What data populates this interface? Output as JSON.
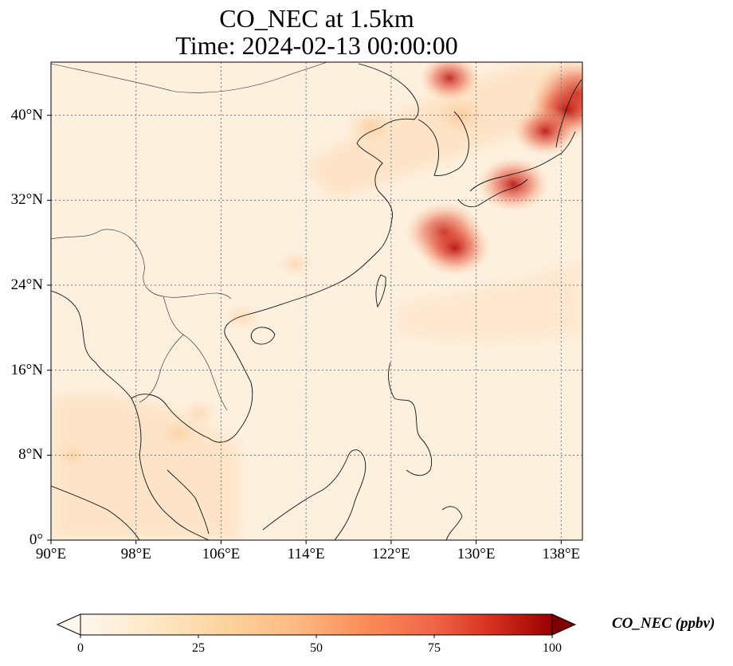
{
  "title": {
    "line1": "CO_NEC at 1.5km",
    "line2": "Time: 2024-02-13 00:00:00"
  },
  "map": {
    "lon_range": [
      90,
      140
    ],
    "lat_range": [
      0,
      45
    ],
    "lat_ticks": [
      {
        "value": 0,
        "label": "0°"
      },
      {
        "value": 8,
        "label": "8°N"
      },
      {
        "value": 16,
        "label": "16°N"
      },
      {
        "value": 24,
        "label": "24°N"
      },
      {
        "value": 32,
        "label": "32°N"
      },
      {
        "value": 40,
        "label": "40°N"
      }
    ],
    "lon_ticks": [
      {
        "value": 90,
        "label": "90°E"
      },
      {
        "value": 98,
        "label": "98°E"
      },
      {
        "value": 106,
        "label": "106°E"
      },
      {
        "value": 114,
        "label": "114°E"
      },
      {
        "value": 122,
        "label": "122°E"
      },
      {
        "value": 130,
        "label": "130°E"
      },
      {
        "value": 138,
        "label": "138°E"
      }
    ],
    "gridline_style": "dotted",
    "colormap": "OrRd",
    "hotspots_lonlat": [
      {
        "lon": 139.5,
        "lat": 42,
        "value": 95
      },
      {
        "lon": 138.5,
        "lat": 40.5,
        "value": 80
      },
      {
        "lon": 136.5,
        "lat": 38.5,
        "value": 60
      },
      {
        "lon": 133.5,
        "lat": 33.5,
        "value": 70
      },
      {
        "lon": 127,
        "lat": 29,
        "value": 80
      },
      {
        "lon": 128,
        "lat": 27.5,
        "value": 72
      },
      {
        "lon": 127.5,
        "lat": 43.5,
        "value": 55
      },
      {
        "lon": 128.5,
        "lat": 40,
        "value": 45
      },
      {
        "lon": 120,
        "lat": 39,
        "value": 40
      },
      {
        "lon": 113,
        "lat": 26,
        "value": 22
      },
      {
        "lon": 102,
        "lat": 10,
        "value": 25
      },
      {
        "lon": 104,
        "lat": 12,
        "value": 20
      },
      {
        "lon": 108,
        "lat": 21,
        "value": 22
      },
      {
        "lon": 92,
        "lat": 8,
        "value": 18
      }
    ]
  },
  "colorbar": {
    "label": "CO_NEC (ppbv)",
    "min": 0,
    "max": 100,
    "extend": "both",
    "ticks": [
      {
        "value": 0,
        "label": "0"
      },
      {
        "value": 25,
        "label": "25"
      },
      {
        "value": 50,
        "label": "50"
      },
      {
        "value": 75,
        "label": "75"
      },
      {
        "value": 100,
        "label": "100"
      }
    ]
  }
}
